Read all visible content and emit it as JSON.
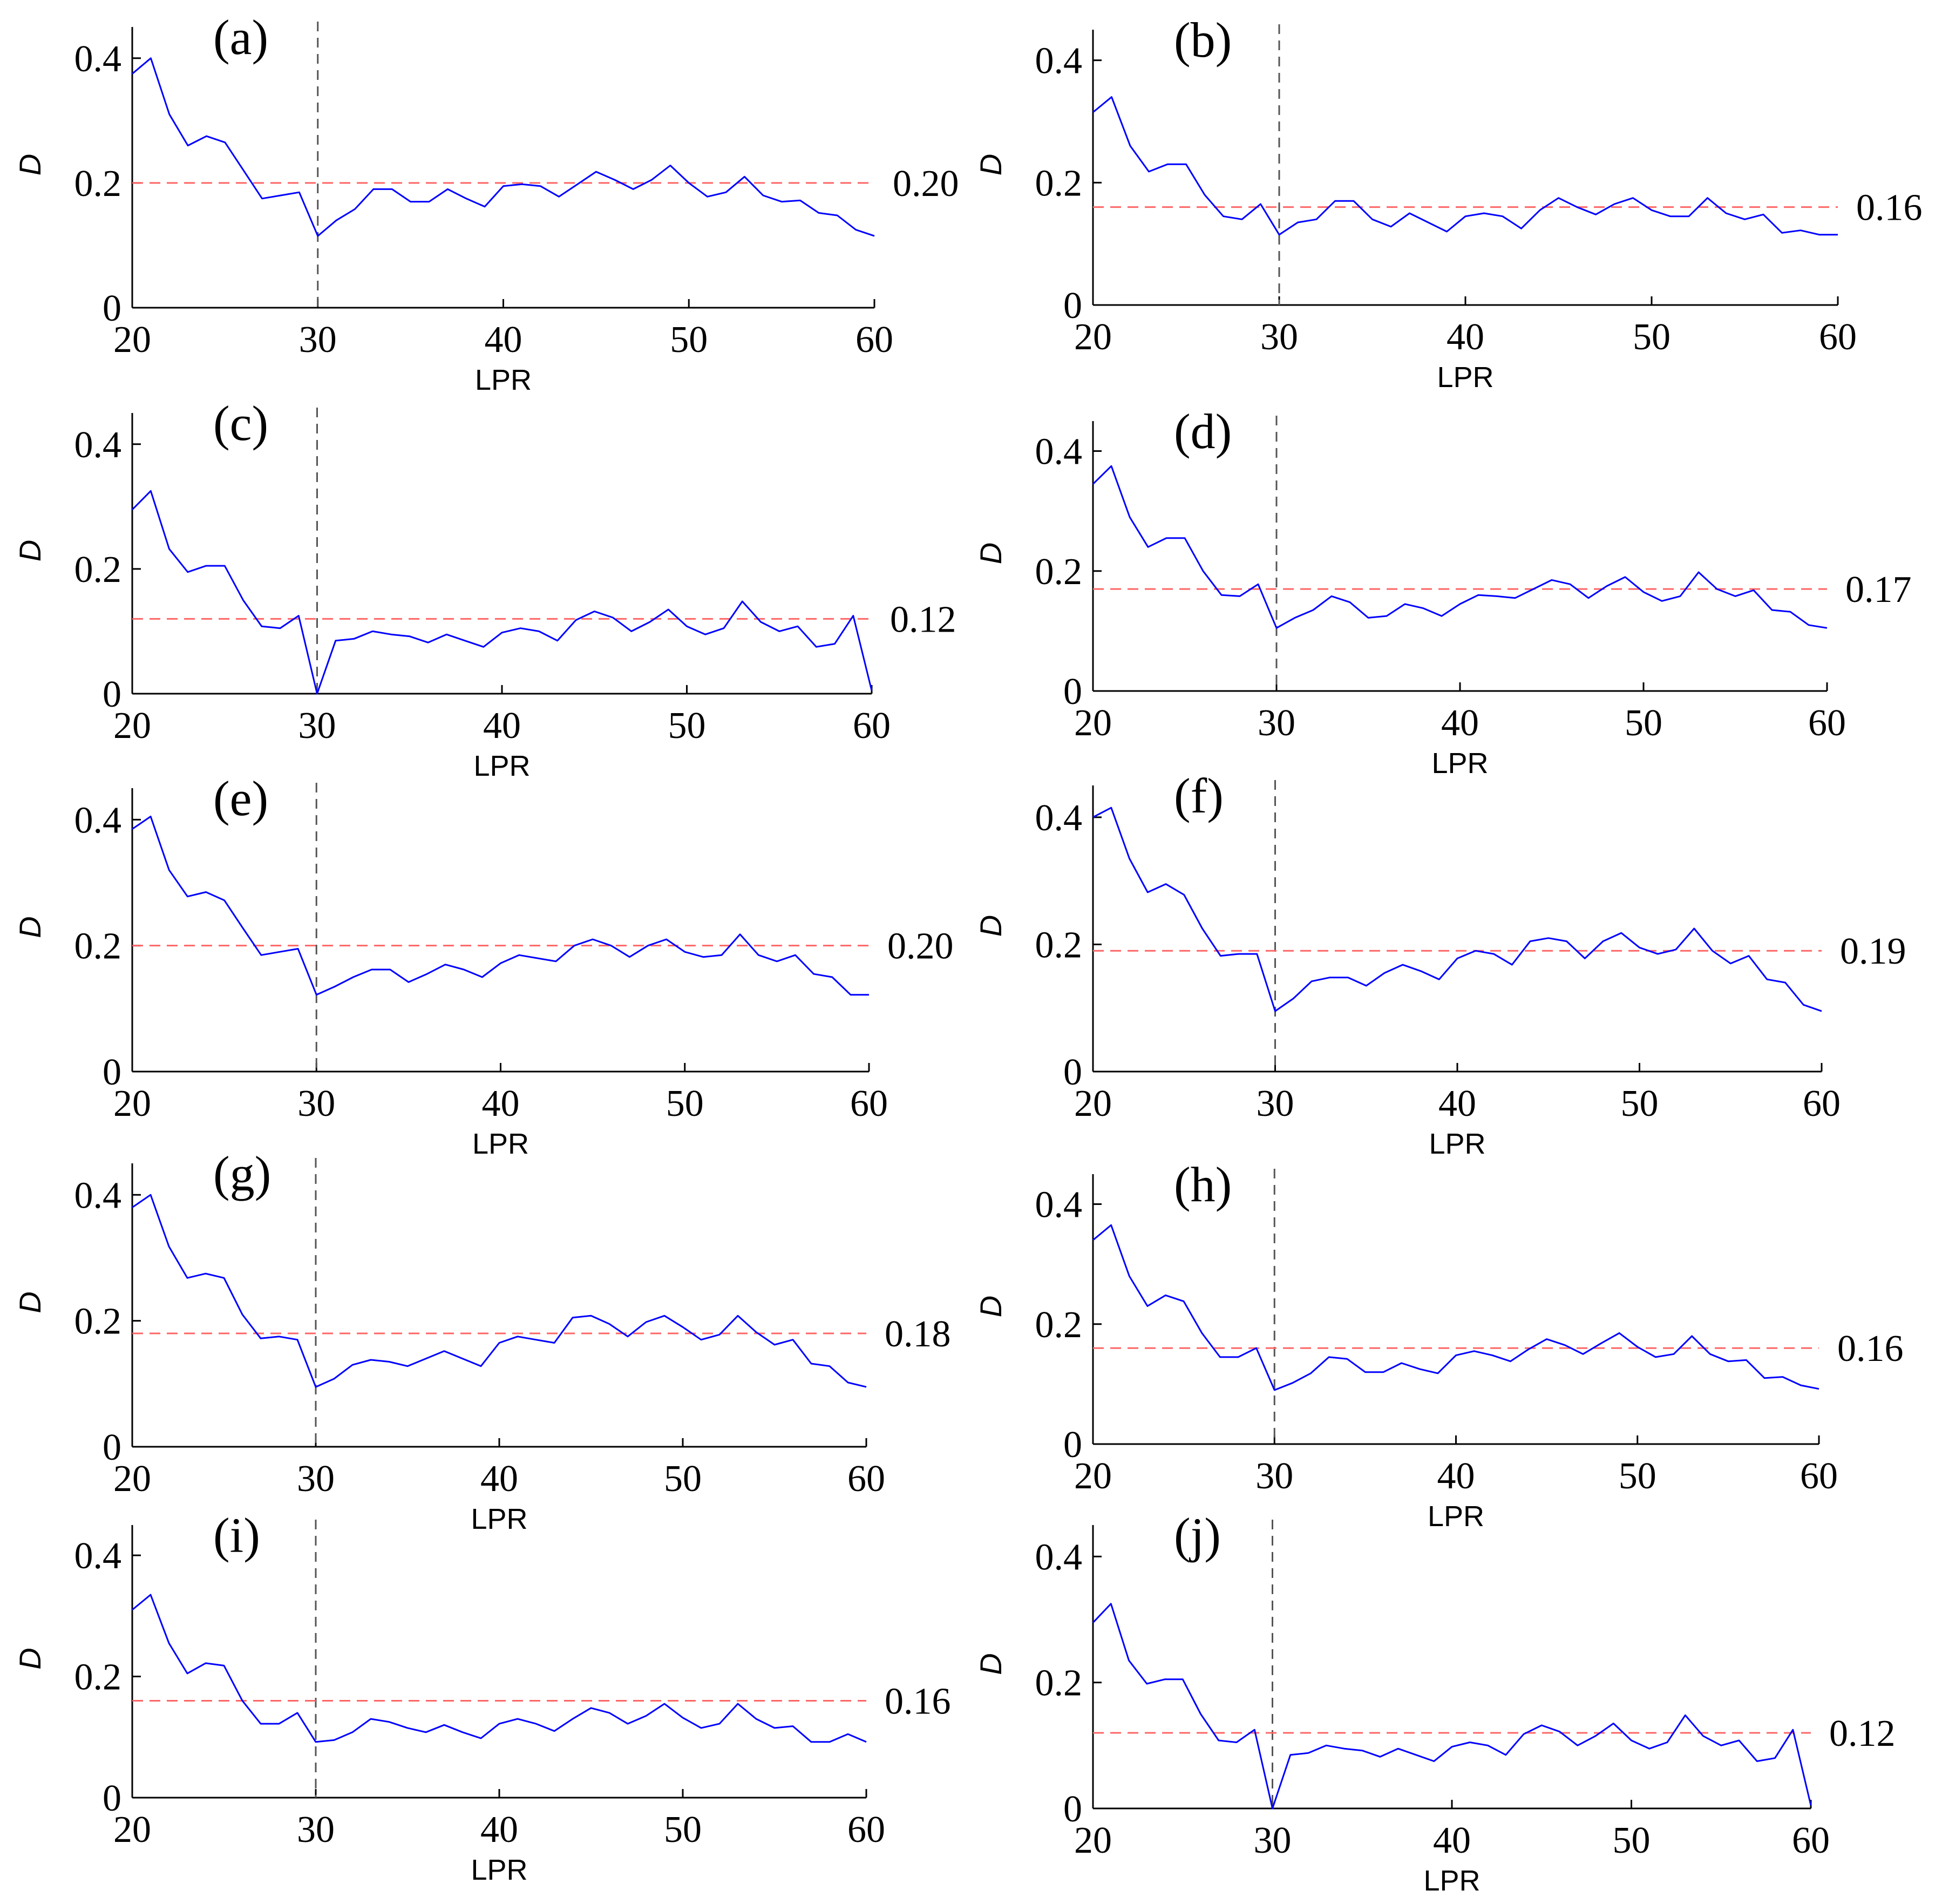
{
  "colors": {
    "series": "#0000ff",
    "mean_line": "#ff6666",
    "marker_line": "#555555",
    "axis": "#000000"
  },
  "chart_data": [
    {
      "type": "line",
      "panel": "(a)",
      "xlabel": "LPR",
      "ylabel": "D",
      "xlim": [
        20,
        60
      ],
      "ylim": [
        0,
        0.45
      ],
      "xticks": [
        20,
        30,
        40,
        50,
        60
      ],
      "yticks": [
        0,
        0.2,
        0.4
      ],
      "vline_x": 30,
      "mean": 0.2,
      "mean_label": "0.20",
      "x_start": 20,
      "values": [
        0.375,
        0.4,
        0.31,
        0.26,
        0.275,
        0.265,
        0.22,
        0.175,
        0.18,
        0.185,
        0.115,
        0.14,
        0.158,
        0.19,
        0.19,
        0.17,
        0.17,
        0.19,
        0.175,
        0.162,
        0.195,
        0.198,
        0.195,
        0.178,
        0.198,
        0.218,
        0.205,
        0.19,
        0.205,
        0.228,
        0.2,
        0.178,
        0.185,
        0.21,
        0.18,
        0.17,
        0.172,
        0.152,
        0.148,
        0.125,
        0.115
      ]
    },
    {
      "type": "line",
      "panel": "(b)",
      "xlabel": "LPR",
      "ylabel": "D",
      "xlim": [
        20,
        60
      ],
      "ylim": [
        0,
        0.45
      ],
      "xticks": [
        20,
        30,
        40,
        50,
        60
      ],
      "yticks": [
        0,
        0.2,
        0.4
      ],
      "vline_x": 30,
      "mean": 0.16,
      "mean_label": "0.16",
      "x_start": 20,
      "values": [
        0.315,
        0.34,
        0.26,
        0.218,
        0.23,
        0.23,
        0.18,
        0.145,
        0.14,
        0.165,
        0.115,
        0.135,
        0.14,
        0.17,
        0.17,
        0.14,
        0.128,
        0.15,
        0.135,
        0.12,
        0.145,
        0.15,
        0.145,
        0.125,
        0.155,
        0.175,
        0.16,
        0.148,
        0.165,
        0.175,
        0.155,
        0.145,
        0.145,
        0.175,
        0.15,
        0.14,
        0.148,
        0.118,
        0.122,
        0.115,
        0.115
      ]
    },
    {
      "type": "line",
      "panel": "(c)",
      "xlabel": "LPR",
      "ylabel": "D",
      "xlim": [
        20,
        60
      ],
      "ylim": [
        0,
        0.45
      ],
      "xticks": [
        20,
        30,
        40,
        50,
        60
      ],
      "yticks": [
        0,
        0.2,
        0.4
      ],
      "vline_x": 30,
      "mean": 0.12,
      "mean_label": "0.12",
      "x_start": 20,
      "values": [
        0.295,
        0.325,
        0.232,
        0.195,
        0.205,
        0.205,
        0.15,
        0.108,
        0.105,
        0.125,
        0.0,
        0.085,
        0.088,
        0.1,
        0.095,
        0.092,
        0.082,
        0.095,
        0.085,
        0.075,
        0.098,
        0.105,
        0.1,
        0.085,
        0.118,
        0.132,
        0.122,
        0.1,
        0.115,
        0.135,
        0.108,
        0.095,
        0.105,
        0.148,
        0.115,
        0.1,
        0.108,
        0.075,
        0.08,
        0.125,
        0.005
      ]
    },
    {
      "type": "line",
      "panel": "(d)",
      "xlabel": "LPR",
      "ylabel": "D",
      "xlim": [
        20,
        60
      ],
      "ylim": [
        0,
        0.45
      ],
      "xticks": [
        20,
        30,
        40,
        50,
        60
      ],
      "yticks": [
        0,
        0.2,
        0.4
      ],
      "vline_x": 30,
      "mean": 0.17,
      "mean_label": "0.17",
      "x_start": 20,
      "values": [
        0.345,
        0.375,
        0.29,
        0.24,
        0.255,
        0.255,
        0.2,
        0.16,
        0.158,
        0.178,
        0.105,
        0.122,
        0.135,
        0.158,
        0.148,
        0.122,
        0.125,
        0.145,
        0.138,
        0.125,
        0.145,
        0.16,
        0.158,
        0.155,
        0.17,
        0.185,
        0.178,
        0.155,
        0.175,
        0.19,
        0.165,
        0.15,
        0.158,
        0.198,
        0.17,
        0.158,
        0.168,
        0.135,
        0.132,
        0.11,
        0.105
      ]
    },
    {
      "type": "line",
      "panel": "(e)",
      "xlabel": "LPR",
      "ylabel": "D",
      "xlim": [
        20,
        60
      ],
      "ylim": [
        0,
        0.45
      ],
      "xticks": [
        20,
        30,
        40,
        50,
        60
      ],
      "yticks": [
        0,
        0.2,
        0.4
      ],
      "vline_x": 30,
      "mean": 0.2,
      "mean_label": "0.20",
      "x_start": 20,
      "values": [
        0.385,
        0.405,
        0.32,
        0.278,
        0.285,
        0.272,
        0.228,
        0.185,
        0.19,
        0.195,
        0.122,
        0.135,
        0.15,
        0.162,
        0.162,
        0.142,
        0.155,
        0.17,
        0.162,
        0.15,
        0.172,
        0.185,
        0.18,
        0.175,
        0.2,
        0.21,
        0.2,
        0.182,
        0.2,
        0.21,
        0.19,
        0.182,
        0.185,
        0.218,
        0.185,
        0.175,
        0.185,
        0.155,
        0.15,
        0.122,
        0.122
      ]
    },
    {
      "type": "line",
      "panel": "(f)",
      "xlabel": "LPR",
      "ylabel": "D",
      "xlim": [
        20,
        60
      ],
      "ylim": [
        0,
        0.45
      ],
      "xticks": [
        20,
        30,
        40,
        50,
        60
      ],
      "yticks": [
        0,
        0.2,
        0.4
      ],
      "vline_x": 30,
      "mean": 0.19,
      "mean_label": "0.19",
      "x_start": 20,
      "values": [
        0.4,
        0.415,
        0.335,
        0.282,
        0.295,
        0.278,
        0.225,
        0.182,
        0.185,
        0.185,
        0.095,
        0.115,
        0.142,
        0.148,
        0.148,
        0.135,
        0.155,
        0.168,
        0.158,
        0.145,
        0.178,
        0.19,
        0.185,
        0.168,
        0.205,
        0.21,
        0.205,
        0.178,
        0.205,
        0.218,
        0.195,
        0.185,
        0.192,
        0.225,
        0.19,
        0.17,
        0.182,
        0.145,
        0.14,
        0.105,
        0.095
      ]
    },
    {
      "type": "line",
      "panel": "(g)",
      "xlabel": "LPR",
      "ylabel": "D",
      "xlim": [
        20,
        60
      ],
      "ylim": [
        0,
        0.45
      ],
      "xticks": [
        20,
        30,
        40,
        50,
        60
      ],
      "yticks": [
        0,
        0.2,
        0.4
      ],
      "vline_x": 30,
      "mean": 0.18,
      "mean_label": "0.18",
      "x_start": 20,
      "values": [
        0.38,
        0.4,
        0.318,
        0.268,
        0.275,
        0.268,
        0.21,
        0.172,
        0.175,
        0.17,
        0.095,
        0.108,
        0.13,
        0.138,
        0.135,
        0.128,
        0.14,
        0.152,
        0.14,
        0.128,
        0.165,
        0.175,
        0.17,
        0.165,
        0.205,
        0.208,
        0.195,
        0.175,
        0.198,
        0.208,
        0.19,
        0.17,
        0.178,
        0.208,
        0.182,
        0.162,
        0.17,
        0.132,
        0.128,
        0.102,
        0.095
      ]
    },
    {
      "type": "line",
      "panel": "(h)",
      "xlabel": "LPR",
      "ylabel": "D",
      "xlim": [
        20,
        60
      ],
      "ylim": [
        0,
        0.45
      ],
      "xticks": [
        20,
        30,
        40,
        50,
        60
      ],
      "yticks": [
        0,
        0.2,
        0.4
      ],
      "vline_x": 30,
      "mean": 0.16,
      "mean_label": "0.16",
      "x_start": 20,
      "values": [
        0.34,
        0.365,
        0.28,
        0.23,
        0.248,
        0.238,
        0.185,
        0.145,
        0.145,
        0.16,
        0.09,
        0.102,
        0.118,
        0.145,
        0.142,
        0.12,
        0.12,
        0.135,
        0.125,
        0.118,
        0.148,
        0.155,
        0.148,
        0.138,
        0.158,
        0.175,
        0.165,
        0.15,
        0.168,
        0.185,
        0.162,
        0.145,
        0.15,
        0.18,
        0.15,
        0.138,
        0.14,
        0.11,
        0.112,
        0.098,
        0.092
      ]
    },
    {
      "type": "line",
      "panel": "(i)",
      "xlabel": "LPR",
      "ylabel": "D",
      "xlim": [
        20,
        60
      ],
      "ylim": [
        0,
        0.45
      ],
      "xticks": [
        20,
        30,
        40,
        50,
        60
      ],
      "yticks": [
        0,
        0.2,
        0.4
      ],
      "vline_x": 30,
      "mean": 0.16,
      "mean_label": "0.16",
      "x_start": 20,
      "values": [
        0.31,
        0.335,
        0.255,
        0.205,
        0.222,
        0.218,
        0.16,
        0.122,
        0.122,
        0.14,
        0.092,
        0.095,
        0.108,
        0.13,
        0.125,
        0.115,
        0.108,
        0.12,
        0.108,
        0.098,
        0.122,
        0.13,
        0.122,
        0.11,
        0.13,
        0.148,
        0.14,
        0.122,
        0.135,
        0.155,
        0.132,
        0.115,
        0.122,
        0.155,
        0.13,
        0.115,
        0.118,
        0.092,
        0.092,
        0.105,
        0.092
      ]
    },
    {
      "type": "line",
      "panel": "(j)",
      "xlabel": "LPR",
      "ylabel": "D",
      "xlim": [
        20,
        60
      ],
      "ylim": [
        0,
        0.45
      ],
      "xticks": [
        20,
        30,
        40,
        50,
        60
      ],
      "yticks": [
        0,
        0.2,
        0.4
      ],
      "vline_x": 30,
      "mean": 0.12,
      "mean_label": "0.12",
      "x_start": 20,
      "values": [
        0.295,
        0.325,
        0.235,
        0.198,
        0.205,
        0.205,
        0.15,
        0.108,
        0.105,
        0.125,
        0.0,
        0.085,
        0.088,
        0.1,
        0.095,
        0.092,
        0.082,
        0.095,
        0.085,
        0.075,
        0.098,
        0.105,
        0.1,
        0.085,
        0.118,
        0.132,
        0.122,
        0.1,
        0.115,
        0.135,
        0.108,
        0.095,
        0.105,
        0.148,
        0.115,
        0.1,
        0.108,
        0.075,
        0.08,
        0.125,
        0.005
      ]
    }
  ]
}
